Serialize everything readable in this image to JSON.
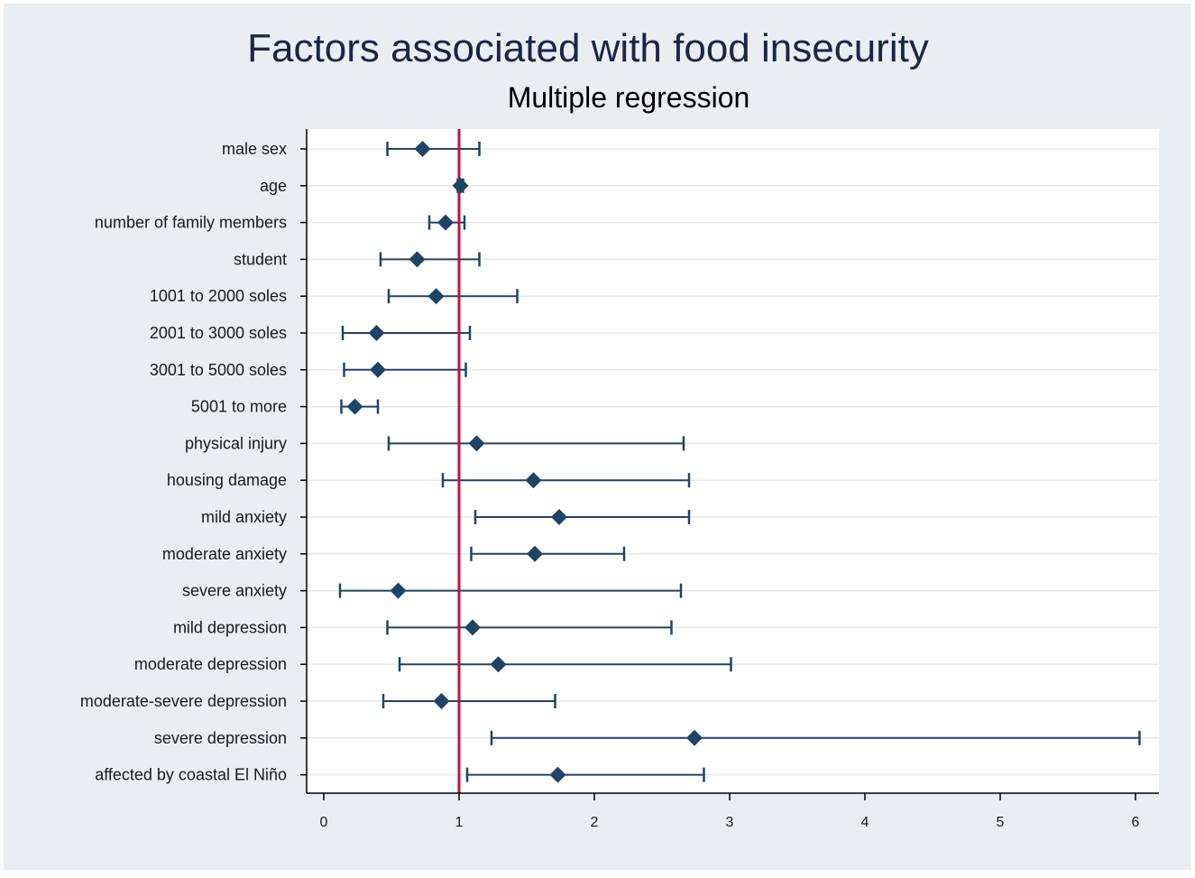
{
  "chart_data": {
    "type": "forest",
    "title": "Factors associated with food insecurity",
    "subtitle": "Multiple regression",
    "xlim": [
      0,
      6
    ],
    "xticks": [
      "0",
      "1",
      "2",
      "3",
      "4",
      "5",
      "6"
    ],
    "reference_line": 1,
    "colors": {
      "background": "#e9eef3",
      "plot_background": "#ffffff",
      "marker": "#1e4466",
      "reference": "#c0143c",
      "grid": "#e3e8ec",
      "title": "#1a2744"
    },
    "rows": [
      {
        "label": "male sex",
        "estimate": 0.73,
        "lower": 0.47,
        "upper": 1.15
      },
      {
        "label": "age",
        "estimate": 1.01,
        "lower": 0.99,
        "upper": 1.03
      },
      {
        "label": "number of family members",
        "estimate": 0.9,
        "lower": 0.78,
        "upper": 1.04
      },
      {
        "label": "student",
        "estimate": 0.69,
        "lower": 0.42,
        "upper": 1.15
      },
      {
        "label": "1001 to 2000 soles",
        "estimate": 0.83,
        "lower": 0.48,
        "upper": 1.43
      },
      {
        "label": "2001 to 3000 soles",
        "estimate": 0.39,
        "lower": 0.14,
        "upper": 1.08
      },
      {
        "label": "3001 to 5000 soles",
        "estimate": 0.4,
        "lower": 0.15,
        "upper": 1.05
      },
      {
        "label": "5001 to more",
        "estimate": 0.23,
        "lower": 0.13,
        "upper": 0.4
      },
      {
        "label": "physical injury",
        "estimate": 1.13,
        "lower": 0.48,
        "upper": 2.66
      },
      {
        "label": "housing damage",
        "estimate": 1.55,
        "lower": 0.88,
        "upper": 2.7
      },
      {
        "label": "mild anxiety",
        "estimate": 1.74,
        "lower": 1.12,
        "upper": 2.7
      },
      {
        "label": "moderate anxiety",
        "estimate": 1.56,
        "lower": 1.09,
        "upper": 2.22
      },
      {
        "label": "severe anxiety",
        "estimate": 0.55,
        "lower": 0.12,
        "upper": 2.64
      },
      {
        "label": "mild depression",
        "estimate": 1.1,
        "lower": 0.47,
        "upper": 2.57
      },
      {
        "label": "moderate depression",
        "estimate": 1.29,
        "lower": 0.56,
        "upper": 3.01
      },
      {
        "label": "moderate-severe depression",
        "estimate": 0.87,
        "lower": 0.44,
        "upper": 1.71
      },
      {
        "label": "severe depression",
        "estimate": 2.74,
        "lower": 1.24,
        "upper": 6.03
      },
      {
        "label": "affected by coastal El Niño",
        "estimate": 1.73,
        "lower": 1.06,
        "upper": 2.81
      }
    ]
  }
}
